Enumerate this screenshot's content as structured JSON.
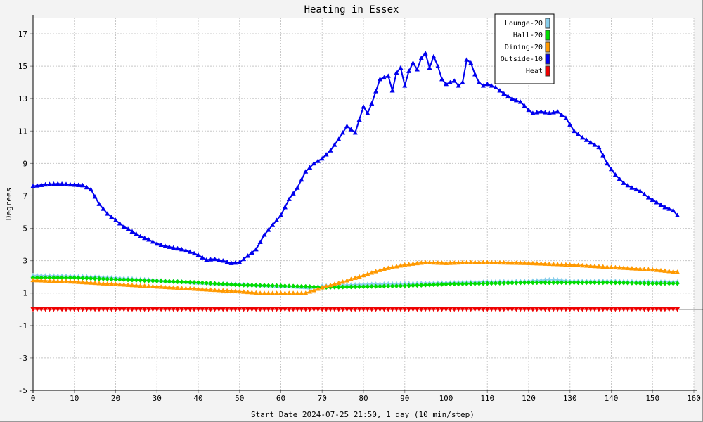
{
  "chart_data": {
    "type": "line",
    "title": "Heating in Essex",
    "xlabel": "Start Date 2024-07-25 21:50, 1 day (10 min/step)",
    "ylabel": "Degrees",
    "xlim": [
      0,
      160
    ],
    "ylim": [
      -5,
      18
    ],
    "xticks": [
      0,
      10,
      20,
      30,
      40,
      50,
      60,
      70,
      80,
      90,
      100,
      110,
      120,
      130,
      140,
      150,
      160
    ],
    "yticks": [
      -5,
      -3,
      -1,
      1,
      3,
      5,
      7,
      9,
      11,
      13,
      15,
      17
    ],
    "grid": true,
    "legend_position": "top-right",
    "series": [
      {
        "name": "Lounge-20",
        "color": "#87ceeb",
        "marker": "triangle-up",
        "points": [
          [
            0,
            2.1
          ],
          [
            10,
            2.05
          ],
          [
            20,
            1.95
          ],
          [
            30,
            1.8
          ],
          [
            40,
            1.65
          ],
          [
            50,
            1.55
          ],
          [
            60,
            1.45
          ],
          [
            67,
            1.35
          ],
          [
            70,
            1.45
          ],
          [
            80,
            1.55
          ],
          [
            90,
            1.6
          ],
          [
            100,
            1.65
          ],
          [
            110,
            1.7
          ],
          [
            120,
            1.75
          ],
          [
            126,
            1.85
          ],
          [
            130,
            1.75
          ],
          [
            140,
            1.75
          ],
          [
            150,
            1.7
          ],
          [
            156,
            1.7
          ]
        ]
      },
      {
        "name": "Hall-20",
        "color": "#00dd00",
        "marker": "diamond",
        "points": [
          [
            0,
            1.95
          ],
          [
            10,
            1.95
          ],
          [
            20,
            1.85
          ],
          [
            30,
            1.75
          ],
          [
            40,
            1.65
          ],
          [
            50,
            1.5
          ],
          [
            60,
            1.45
          ],
          [
            67,
            1.4
          ],
          [
            70,
            1.35
          ],
          [
            80,
            1.4
          ],
          [
            90,
            1.45
          ],
          [
            100,
            1.55
          ],
          [
            110,
            1.6
          ],
          [
            120,
            1.65
          ],
          [
            130,
            1.65
          ],
          [
            140,
            1.65
          ],
          [
            150,
            1.6
          ],
          [
            156,
            1.6
          ]
        ]
      },
      {
        "name": "Dining-20",
        "color": "#ff9900",
        "marker": "triangle-up",
        "points": [
          [
            0,
            1.8
          ],
          [
            10,
            1.7
          ],
          [
            20,
            1.55
          ],
          [
            30,
            1.4
          ],
          [
            40,
            1.25
          ],
          [
            50,
            1.1
          ],
          [
            55,
            1.0
          ],
          [
            60,
            1.0
          ],
          [
            66,
            1.0
          ],
          [
            70,
            1.35
          ],
          [
            75,
            1.7
          ],
          [
            80,
            2.1
          ],
          [
            85,
            2.5
          ],
          [
            90,
            2.75
          ],
          [
            95,
            2.9
          ],
          [
            100,
            2.85
          ],
          [
            105,
            2.9
          ],
          [
            110,
            2.9
          ],
          [
            120,
            2.85
          ],
          [
            130,
            2.75
          ],
          [
            140,
            2.6
          ],
          [
            150,
            2.45
          ],
          [
            156,
            2.3
          ]
        ]
      },
      {
        "name": "Outside-10",
        "color": "#0000ee",
        "marker": "triangle-up",
        "points": [
          [
            0,
            7.6
          ],
          [
            3,
            7.7
          ],
          [
            6,
            7.75
          ],
          [
            9,
            7.7
          ],
          [
            12,
            7.65
          ],
          [
            14,
            7.4
          ],
          [
            16,
            6.5
          ],
          [
            18,
            5.9
          ],
          [
            20,
            5.5
          ],
          [
            22,
            5.1
          ],
          [
            24,
            4.8
          ],
          [
            26,
            4.5
          ],
          [
            28,
            4.3
          ],
          [
            30,
            4.05
          ],
          [
            32,
            3.9
          ],
          [
            34,
            3.8
          ],
          [
            36,
            3.7
          ],
          [
            38,
            3.55
          ],
          [
            40,
            3.35
          ],
          [
            42,
            3.05
          ],
          [
            44,
            3.1
          ],
          [
            46,
            3.0
          ],
          [
            48,
            2.85
          ],
          [
            50,
            2.9
          ],
          [
            52,
            3.3
          ],
          [
            54,
            3.7
          ],
          [
            56,
            4.6
          ],
          [
            58,
            5.2
          ],
          [
            60,
            5.8
          ],
          [
            62,
            6.8
          ],
          [
            64,
            7.5
          ],
          [
            66,
            8.5
          ],
          [
            68,
            9.0
          ],
          [
            70,
            9.3
          ],
          [
            72,
            9.8
          ],
          [
            74,
            10.5
          ],
          [
            76,
            11.3
          ],
          [
            78,
            10.9
          ],
          [
            80,
            12.5
          ],
          [
            81,
            12.1
          ],
          [
            82,
            12.7
          ],
          [
            84,
            14.2
          ],
          [
            86,
            14.4
          ],
          [
            87,
            13.5
          ],
          [
            88,
            14.6
          ],
          [
            89,
            14.9
          ],
          [
            90,
            13.8
          ],
          [
            91,
            14.7
          ],
          [
            92,
            15.2
          ],
          [
            93,
            14.8
          ],
          [
            94,
            15.5
          ],
          [
            95,
            15.8
          ],
          [
            96,
            14.9
          ],
          [
            97,
            15.6
          ],
          [
            98,
            15.0
          ],
          [
            99,
            14.2
          ],
          [
            100,
            13.9
          ],
          [
            102,
            14.1
          ],
          [
            103,
            13.8
          ],
          [
            104,
            14.0
          ],
          [
            105,
            15.4
          ],
          [
            106,
            15.2
          ],
          [
            107,
            14.5
          ],
          [
            108,
            14.0
          ],
          [
            109,
            13.8
          ],
          [
            110,
            13.9
          ],
          [
            112,
            13.7
          ],
          [
            114,
            13.3
          ],
          [
            116,
            13.0
          ],
          [
            118,
            12.8
          ],
          [
            120,
            12.3
          ],
          [
            121,
            12.1
          ],
          [
            123,
            12.2
          ],
          [
            125,
            12.1
          ],
          [
            127,
            12.2
          ],
          [
            129,
            11.8
          ],
          [
            131,
            11.0
          ],
          [
            133,
            10.6
          ],
          [
            135,
            10.3
          ],
          [
            137,
            10.0
          ],
          [
            139,
            9.0
          ],
          [
            141,
            8.3
          ],
          [
            143,
            7.8
          ],
          [
            145,
            7.5
          ],
          [
            147,
            7.3
          ],
          [
            149,
            6.9
          ],
          [
            151,
            6.6
          ],
          [
            153,
            6.3
          ],
          [
            155,
            6.1
          ],
          [
            156,
            5.8
          ]
        ]
      },
      {
        "name": "Heat",
        "color": "#ee0000",
        "marker": "triangle-down",
        "points": [
          [
            0,
            0
          ],
          [
            156,
            0
          ]
        ]
      }
    ]
  }
}
